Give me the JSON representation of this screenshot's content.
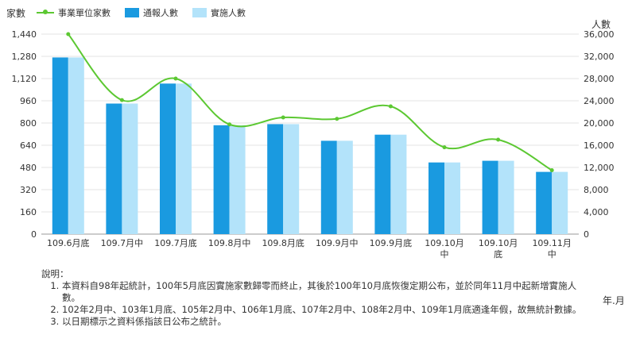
{
  "chart_data": {
    "type": "bar",
    "categories": [
      "109.6月底",
      "109.7月中",
      "109.7月底",
      "109.8月中",
      "109.8月底",
      "109.9月中",
      "109.9月底",
      "109.10月\n中",
      "109.10月\n底",
      "109.11月\n中"
    ],
    "series": [
      {
        "name": "事業單位家數",
        "type": "line",
        "axis": "left",
        "color": "#5cc832",
        "values": [
          1440,
          965,
          1120,
          790,
          840,
          830,
          920,
          625,
          680,
          460
        ]
      },
      {
        "name": "通報人數",
        "type": "bar",
        "axis": "right",
        "color": "#1a9ae0",
        "values": [
          31800,
          23500,
          27100,
          19600,
          19800,
          16800,
          17900,
          12900,
          13200,
          11200
        ]
      },
      {
        "name": "實施人數",
        "type": "bar",
        "axis": "right",
        "color": "#b3e3fa",
        "values": [
          31800,
          23500,
          27100,
          19600,
          19800,
          16800,
          17900,
          12900,
          13200,
          11200
        ]
      }
    ],
    "left_axis": {
      "label": "家數",
      "ticks": [
        "0",
        "160",
        "320",
        "480",
        "640",
        "800",
        "960",
        "1,120",
        "1,280",
        "1,440"
      ],
      "range": [
        0,
        1440
      ]
    },
    "right_axis": {
      "label": "人數",
      "ticks": [
        "0",
        "4,000",
        "8,000",
        "12,000",
        "16,000",
        "20,000",
        "24,000",
        "28,000",
        "32,000",
        "36,000"
      ],
      "range": [
        0,
        36000
      ]
    },
    "grid": true,
    "legend_position": "top-left"
  },
  "x_unit": "年.月",
  "notes": {
    "title": "說明：",
    "items": [
      "本資料自98年起統計，100年5月底因實施家數歸零而終止，其後於100年10月底恢復定期公布，並於同年11月中起新增實施人數。",
      "102年2月中、103年1月底、105年2月中、106年1月底、107年2月中、108年2月中、109年1月底適逢年假，故無統計數據。",
      "以日期標示之資料係指該日公布之統計。"
    ]
  }
}
